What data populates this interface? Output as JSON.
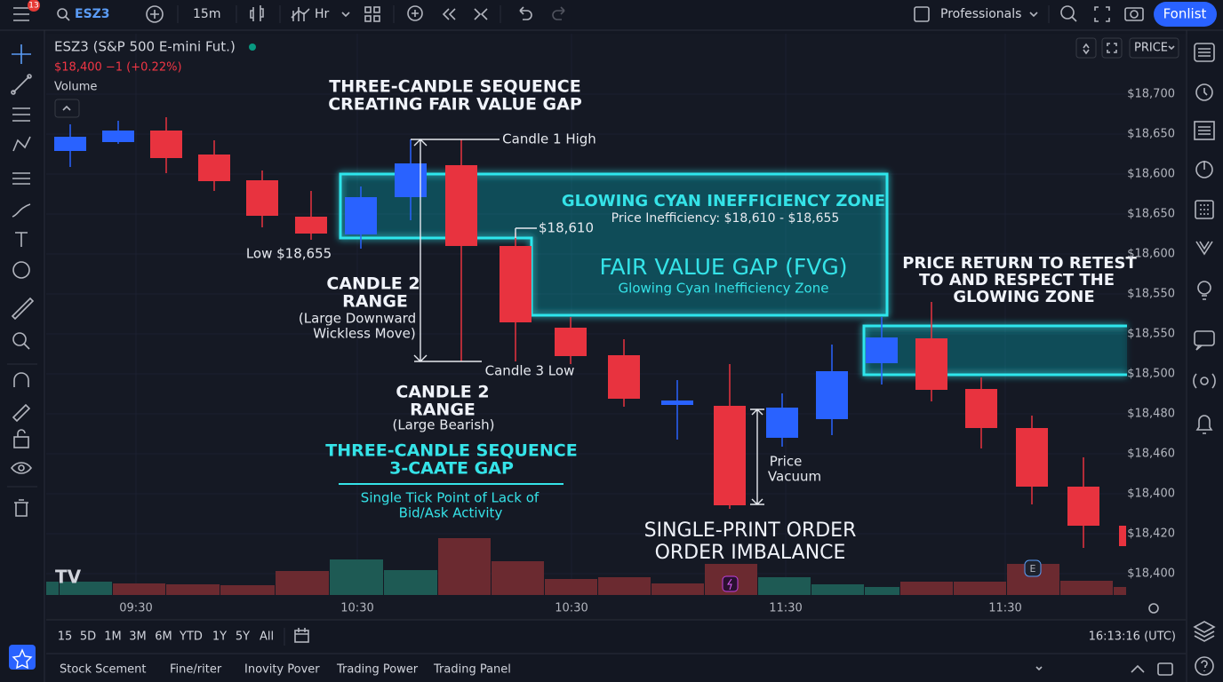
{
  "toolbar": {
    "notification_count": "13",
    "symbol": "ESZ3",
    "interval": "15m",
    "chart_style": "Hr",
    "account": "Professionals",
    "button": "Fonlist"
  },
  "legend": {
    "symbol": "ESZ3 (S&P 500 E-mini Fut.)",
    "quote": "$18,400 −1 (+0.22%)",
    "volume": "Volume"
  },
  "price_scale": {
    "mode": "PRICE",
    "labels": [
      "$18,700",
      "$18,650",
      "$18,600",
      "$18,650",
      "$18,600",
      "$18,550",
      "$18,550",
      "$18,500",
      "$18,480",
      "$18,460",
      "$18,400",
      "$18,420",
      "$18,400"
    ]
  },
  "time_labels": [
    "09:30",
    "10:30",
    "10:30",
    "11:30",
    "11:30"
  ],
  "annotations": {
    "sequence_title": [
      "THREE-CANDLE SEQUENCE",
      "CREATING FAIR VALUE GAP"
    ],
    "candle1_high": "Candle 1 High",
    "level_18610": "$18,610",
    "low_label": "Low $18,655",
    "zone_title": "GLOWING CYAN INEFFICIENCY ZONE",
    "zone_subtitle": "Price Inefficiency: $18,610 - $18,655",
    "fvg_title": "FAIR VALUE GAP (FVG)",
    "fvg_subtitle": "Glowing Cyan Inefficiency Zone",
    "candle2_range": [
      "CANDLE 2",
      "RANGE",
      "(Large Downward",
      "Wickless Move)"
    ],
    "candle3_low": "Candle 3 Low",
    "candle2_range_b": [
      "CANDLE 2",
      "RANGE",
      "(Large Bearish)"
    ],
    "sequence_gap": [
      "THREE-CANDLE SEQUENCE",
      "3-CAATE GAP"
    ],
    "single_tick": [
      "Single Tick Point of Lack of",
      "Bid/Ask Activity"
    ],
    "price_vacuum": [
      "Price",
      "Vacuum"
    ],
    "single_print": [
      "SINGLE-PRINT ORDER",
      "ORDER IMBALANCE"
    ],
    "retest": [
      "PRICE RETURN TO RETEST",
      "TO AND RESPECT THE",
      "GLOWING ZONE"
    ],
    "event_marker": "E"
  },
  "ranges": [
    "15",
    "5D",
    "1M",
    "3M",
    "6M",
    "YTD",
    "1Y",
    "5Y",
    "All"
  ],
  "clock": "16:13:16 (UTC)",
  "bottom_tabs": [
    "Stock Scement",
    "Fine/riter",
    "Inovity Pover",
    "Trading Power",
    "Trading Panel"
  ]
}
